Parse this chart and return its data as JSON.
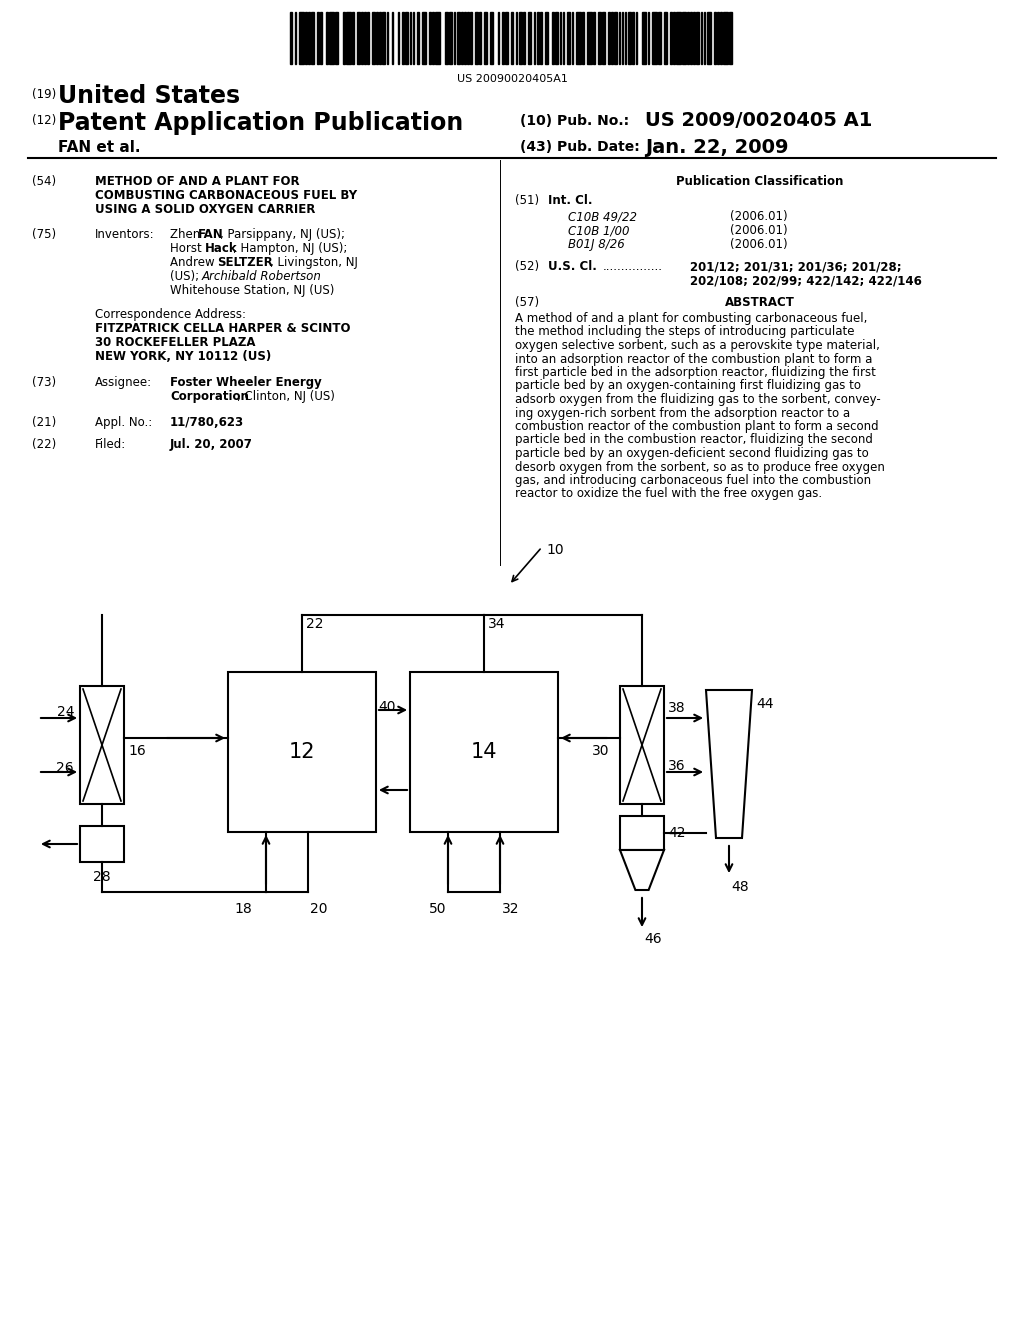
{
  "background_color": "#ffffff",
  "barcode_text": "US 20090020405A1",
  "header": {
    "country_num": "(19)",
    "country": "United States",
    "type_num": "(12)",
    "type": "Patent Application Publication",
    "pub_num_label": "(10) Pub. No.:",
    "pub_num": "US 2009/0020405 A1",
    "authors": "FAN et al.",
    "date_label": "(43) Pub. Date:",
    "date": "Jan. 22, 2009"
  },
  "abstract_text": "A method of and a plant for combusting carbonaceous fuel, the method including the steps of introducing particulate oxygen selective sorbent, such as a perovskite type material, into an adsorption reactor of the combustion plant to form a first particle bed in the adsorption reactor, fluidizing the first particle bed by an oxygen-containing first fluidizing gas to adsorb oxygen from the fluidizing gas to the sorbent, convey-ing oxygen-rich sorbent from the adsorption reactor to a combustion reactor of the combustion plant to form a second particle bed in the combustion reactor, fluidizing the second particle bed by an oxygen-deficient second fluidizing gas to desorb oxygen from the sorbent, so as to produce free oxygen gas, and introducing carbonaceous fuel into the combustion reactor to oxidize the fuel with the free oxygen gas."
}
